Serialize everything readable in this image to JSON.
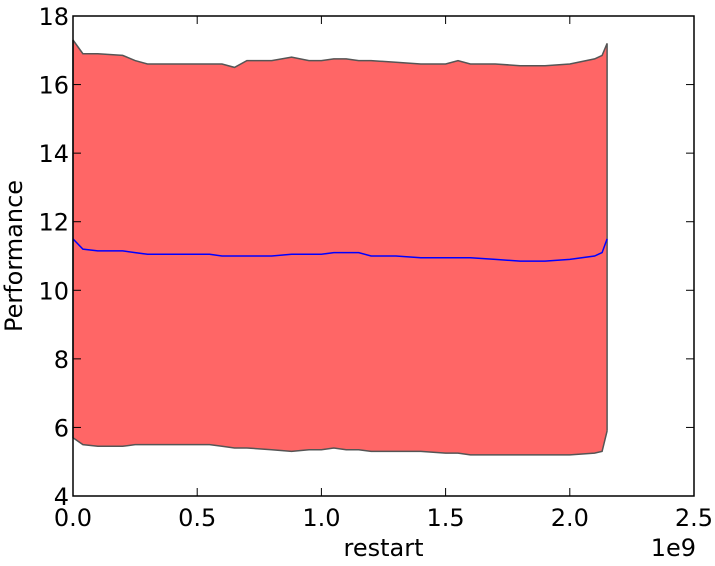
{
  "chart_data": {
    "type": "area",
    "xlabel": "restart",
    "ylabel": "Performance",
    "x_offset_label": "1e9",
    "xlim": [
      0.0,
      2.5
    ],
    "ylim": [
      4,
      18
    ],
    "x_ticks": [
      0.0,
      0.5,
      1.0,
      1.5,
      2.0,
      2.5
    ],
    "x_tick_labels": [
      "0.0",
      "0.5",
      "1.0",
      "1.5",
      "2.0",
      "2.5"
    ],
    "y_ticks": [
      4,
      6,
      8,
      10,
      12,
      14,
      16,
      18
    ],
    "y_tick_labels": [
      "4",
      "6",
      "8",
      "10",
      "12",
      "14",
      "16",
      "18"
    ],
    "grid": false,
    "x": [
      0.0,
      0.04,
      0.1,
      0.2,
      0.25,
      0.3,
      0.4,
      0.5,
      0.55,
      0.6,
      0.65,
      0.7,
      0.8,
      0.88,
      0.95,
      1.0,
      1.05,
      1.1,
      1.15,
      1.2,
      1.3,
      1.4,
      1.5,
      1.55,
      1.6,
      1.7,
      1.8,
      1.9,
      2.0,
      2.1,
      2.13,
      2.15
    ],
    "series": [
      {
        "mean": [
          11.5,
          11.2,
          11.15,
          11.15,
          11.1,
          11.05,
          11.05,
          11.05,
          11.05,
          11.0,
          11.0,
          11.0,
          11.0,
          11.05,
          11.05,
          11.05,
          11.1,
          11.1,
          11.1,
          11.0,
          11.0,
          10.95,
          10.95,
          10.95,
          10.95,
          10.9,
          10.85,
          10.85,
          10.9,
          11.0,
          11.1,
          11.5
        ],
        "upper": [
          17.3,
          16.9,
          16.9,
          16.85,
          16.7,
          16.6,
          16.6,
          16.6,
          16.6,
          16.6,
          16.5,
          16.7,
          16.7,
          16.8,
          16.7,
          16.7,
          16.75,
          16.75,
          16.7,
          16.7,
          16.65,
          16.6,
          16.6,
          16.7,
          16.6,
          16.6,
          16.55,
          16.55,
          16.6,
          16.75,
          16.85,
          17.2
        ],
        "lower": [
          5.7,
          5.5,
          5.45,
          5.45,
          5.5,
          5.5,
          5.5,
          5.5,
          5.5,
          5.45,
          5.4,
          5.4,
          5.35,
          5.3,
          5.35,
          5.35,
          5.4,
          5.35,
          5.35,
          5.3,
          5.3,
          5.3,
          5.25,
          5.25,
          5.2,
          5.2,
          5.2,
          5.2,
          5.2,
          5.25,
          5.3,
          5.9
        ]
      }
    ],
    "colors": {
      "band_fill": "#ff6666",
      "band_edge": "#555555",
      "mean_line": "#0000ff",
      "axes": "#000000"
    }
  }
}
